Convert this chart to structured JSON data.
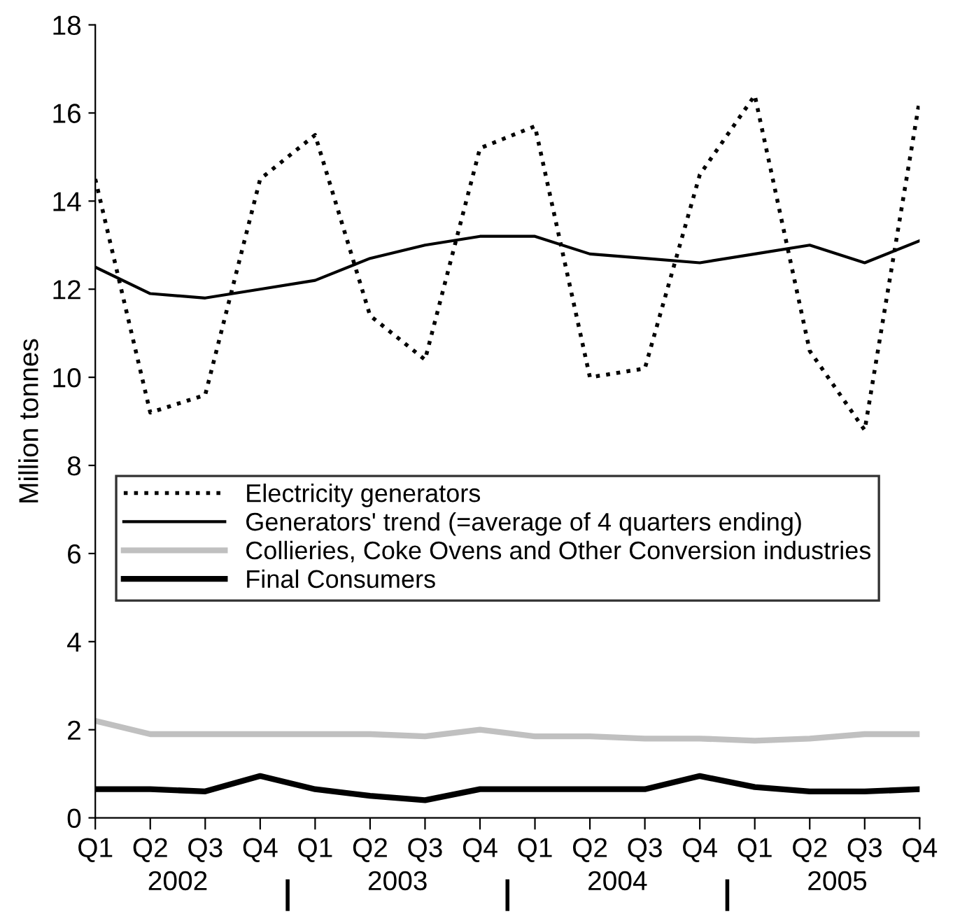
{
  "chart_data": {
    "type": "line",
    "ylabel": "Million tonnes",
    "categories": [
      "Q1",
      "Q2",
      "Q3",
      "Q4",
      "Q1",
      "Q2",
      "Q3",
      "Q4",
      "Q1",
      "Q2",
      "Q3",
      "Q4",
      "Q1",
      "Q2",
      "Q3",
      "Q4"
    ],
    "annotations": [
      "2002",
      "2003",
      "2004",
      "2005"
    ],
    "series": [
      {
        "name": "Electricity generators",
        "color": "#000000",
        "line_style": "dotted",
        "values": [
          14.5,
          9.2,
          9.6,
          14.5,
          15.5,
          11.4,
          10.4,
          15.2,
          15.7,
          10.0,
          10.2,
          14.6,
          16.4,
          10.6,
          8.8,
          16.3
        ]
      },
      {
        "name": "Generators' trend (=average of 4 quarters ending)",
        "color": "#000000",
        "line_style": "solid",
        "values": [
          12.5,
          11.9,
          11.8,
          12.0,
          12.2,
          12.7,
          13.0,
          13.2,
          13.2,
          12.8,
          12.7,
          12.6,
          12.8,
          13.0,
          12.6,
          13.1
        ]
      },
      {
        "name": "Collieries, Coke Ovens and Other Conversion industries",
        "color": "#c0c0c0",
        "line_style": "solid",
        "values": [
          2.2,
          1.9,
          1.9,
          1.9,
          1.9,
          1.9,
          1.85,
          2.0,
          1.85,
          1.85,
          1.8,
          1.8,
          1.75,
          1.8,
          1.9,
          1.9
        ]
      },
      {
        "name": "Final Consumers",
        "color": "#000000",
        "line_style": "solid",
        "values": [
          0.65,
          0.65,
          0.6,
          0.95,
          0.65,
          0.5,
          0.4,
          0.65,
          0.65,
          0.65,
          0.65,
          0.95,
          0.7,
          0.6,
          0.6,
          0.65
        ]
      }
    ],
    "ylim": [
      0,
      18
    ],
    "yticks": [
      0,
      2,
      4,
      6,
      8,
      10,
      12,
      14,
      16,
      18
    ],
    "grid": false,
    "legend": "left",
    "marker": "none"
  }
}
